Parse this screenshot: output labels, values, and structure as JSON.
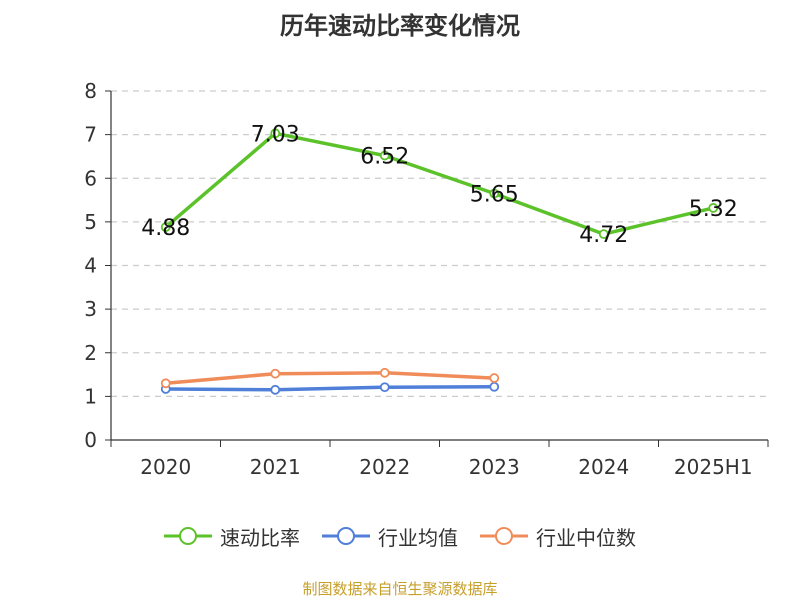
{
  "chart_data": {
    "type": "line",
    "title": "历年速动比率变化情况",
    "categories": [
      "2020",
      "2021",
      "2022",
      "2023",
      "2024",
      "2025H1"
    ],
    "ylim": [
      0,
      8
    ],
    "yticks": [
      "0",
      "1",
      "2",
      "3",
      "4",
      "5",
      "6",
      "7",
      "8"
    ],
    "grid": true,
    "legend_position": "bottom",
    "series": [
      {
        "name": "速动比率",
        "color": "#5cc22a",
        "values": [
          4.88,
          7.03,
          6.52,
          5.65,
          4.72,
          5.32
        ],
        "labels": [
          "4.88",
          "7.03",
          "6.52",
          "5.65",
          "4.72",
          "5.32"
        ]
      },
      {
        "name": "行业均值",
        "color": "#4f7fd9",
        "values": [
          1.17,
          1.15,
          1.21,
          1.22,
          null,
          null
        ]
      },
      {
        "name": "行业中位数",
        "color": "#f08c5a",
        "values": [
          1.3,
          1.52,
          1.54,
          1.42,
          null,
          null
        ]
      }
    ],
    "source": "制图数据来自恒生聚源数据库"
  }
}
